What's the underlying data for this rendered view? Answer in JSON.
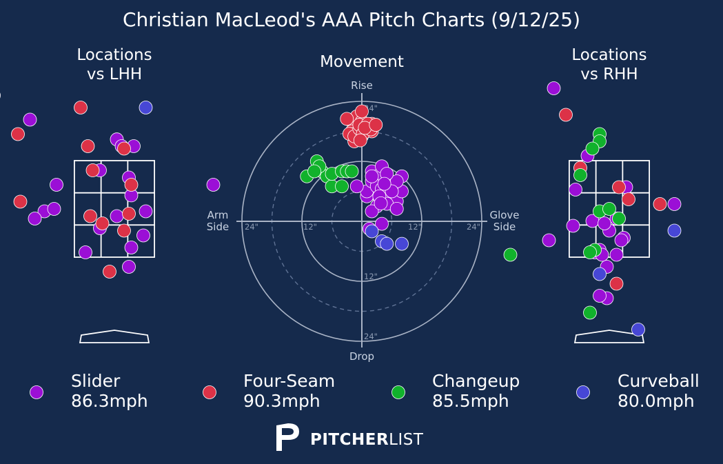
{
  "title": "Christian MacLeod's AAA Pitch Charts (9/12/25)",
  "colors": {
    "background": "#152a4c",
    "Slider": "#9b0fd6",
    "Four-Seam": "#dc3247",
    "Changeup": "#11b22c",
    "Curveball": "#4747d6"
  },
  "brand": {
    "logo": "pitcherlist-logo-icon",
    "bold": "PITCHER",
    "light": "LIST"
  },
  "legend": [
    {
      "pitch": "Slider",
      "velo": "86.3mph"
    },
    {
      "pitch": "Four-Seam",
      "velo": "90.3mph"
    },
    {
      "pitch": "Changeup",
      "velo": "85.5mph"
    },
    {
      "pitch": "Curveball",
      "velo": "80.0mph"
    }
  ],
  "chart_data": [
    {
      "type": "scatter",
      "title": "Locations\nvs LHH",
      "xlim": [
        -2.5,
        2.5
      ],
      "ylim": [
        0,
        5
      ],
      "strike_zone": {
        "x": [
          -0.83,
          0.83
        ],
        "z": [
          1.5,
          3.5
        ]
      },
      "series": [
        {
          "name": "Slider",
          "points": [
            [
              -2.5,
              4.85
            ],
            [
              -1.75,
              4.35
            ],
            [
              0.05,
              3.94
            ],
            [
              0.15,
              3.8
            ],
            [
              0.4,
              3.8
            ],
            [
              -0.3,
              3.3
            ],
            [
              0.3,
              3.15
            ],
            [
              -1.2,
              3.0
            ],
            [
              2.05,
              3.0
            ],
            [
              0.35,
              2.78
            ],
            [
              -1.45,
              2.45
            ],
            [
              -1.65,
              2.3
            ],
            [
              -1.25,
              2.5
            ],
            [
              0.05,
              2.35
            ],
            [
              0.65,
              2.45
            ],
            [
              0.6,
              1.95
            ],
            [
              -0.3,
              2.1
            ],
            [
              0.35,
              1.7
            ],
            [
              -0.6,
              1.6
            ],
            [
              0.3,
              1.3
            ]
          ]
        },
        {
          "name": "Four-Seam",
          "points": [
            [
              -0.7,
              4.6
            ],
            [
              -2.0,
              4.05
            ],
            [
              -0.55,
              3.8
            ],
            [
              0.2,
              3.75
            ],
            [
              -0.45,
              3.3
            ],
            [
              0.35,
              3.0
            ],
            [
              -1.95,
              2.65
            ],
            [
              0.3,
              2.4
            ],
            [
              -0.5,
              2.35
            ],
            [
              -0.25,
              2.2
            ],
            [
              0.2,
              2.05
            ],
            [
              -0.1,
              1.2
            ]
          ]
        },
        {
          "name": "Changeup",
          "points": []
        },
        {
          "name": "Curveball",
          "points": [
            [
              0.65,
              4.6
            ]
          ]
        }
      ]
    },
    {
      "type": "scatter",
      "title": "Movement",
      "xlabel_left": "Arm\nSide",
      "xlabel_right": "Glove\nSide",
      "ylabel_top": "Rise",
      "ylabel_bottom": "Drop",
      "rings": [
        6,
        12,
        18,
        24
      ],
      "ring_labels": [
        "12\"",
        "24\""
      ],
      "xlim": [
        -24,
        24
      ],
      "ylim": [
        -24,
        24
      ],
      "series": [
        {
          "name": "Slider",
          "points": [
            [
              1,
              5
            ],
            [
              2,
              10
            ],
            [
              3,
              9
            ],
            [
              4,
              11
            ],
            [
              4,
              7
            ],
            [
              5,
              8
            ],
            [
              6,
              5
            ],
            [
              7,
              4
            ],
            [
              8,
              9
            ],
            [
              8,
              6
            ],
            [
              3.5,
              4
            ],
            [
              5,
              6
            ],
            [
              1,
              6
            ],
            [
              2,
              8
            ],
            [
              3,
              7
            ],
            [
              4,
              6.5
            ],
            [
              6,
              7
            ],
            [
              7,
              8
            ],
            [
              5,
              3.5
            ],
            [
              3,
              3
            ],
            [
              -1,
              7
            ],
            [
              7,
              2.5
            ],
            [
              6,
              6
            ],
            [
              5,
              9.5
            ],
            [
              2,
              9
            ],
            [
              3.5,
              5
            ],
            [
              4.5,
              7.5
            ],
            [
              2,
              2
            ],
            [
              3.8,
              3.6
            ],
            [
              4,
              -0.5
            ],
            [
              1.5,
              -1.5
            ]
          ]
        },
        {
          "name": "Four-Seam",
          "points": [
            [
              -2,
              20
            ],
            [
              -1,
              21
            ],
            [
              0,
              20
            ],
            [
              1,
              19
            ],
            [
              2,
              18
            ],
            [
              -2,
              18
            ],
            [
              0,
              17
            ],
            [
              0,
              22
            ],
            [
              -1.5,
              16
            ],
            [
              -2.5,
              17.5
            ],
            [
              2,
              19
            ],
            [
              -1.5,
              17
            ],
            [
              -0.5,
              18.5
            ],
            [
              -0.5,
              19.3
            ],
            [
              -3,
              20.5
            ],
            [
              2,
              19.5
            ],
            [
              0.2,
              17.5
            ],
            [
              -0.3,
              16.2
            ],
            [
              1.8,
              18.4
            ],
            [
              1.2,
              19.5
            ],
            [
              0.6,
              18.7
            ],
            [
              2.8,
              19.3
            ]
          ]
        },
        {
          "name": "Changeup",
          "points": [
            [
              -11,
              9
            ],
            [
              -9,
              12
            ],
            [
              -8,
              10
            ],
            [
              -7,
              9
            ],
            [
              -6,
              7
            ],
            [
              -6,
              9.5
            ],
            [
              -4,
              7
            ],
            [
              -4,
              10
            ],
            [
              -3,
              10
            ],
            [
              -2,
              10
            ],
            [
              -8.5,
              11
            ],
            [
              -9.5,
              10
            ]
          ]
        },
        {
          "name": "Curveball",
          "points": [
            [
              2,
              -2
            ],
            [
              4,
              -4
            ],
            [
              5,
              -4.5
            ],
            [
              8,
              -4.5
            ]
          ]
        }
      ]
    },
    {
      "type": "scatter",
      "title": "Locations\nvs RHH",
      "xlim": [
        -2.5,
        2.5
      ],
      "ylim": [
        0,
        5
      ],
      "strike_zone": {
        "x": [
          -0.83,
          0.83
        ],
        "z": [
          1.5,
          3.5
        ]
      },
      "series": [
        {
          "name": "Slider",
          "points": [
            [
              -1.15,
              5.0
            ],
            [
              -0.45,
              3.6
            ],
            [
              0.35,
              2.95
            ],
            [
              -0.7,
              2.9
            ],
            [
              1.35,
              2.6
            ],
            [
              -0.35,
              2.25
            ],
            [
              -0.75,
              2.15
            ],
            [
              0.0,
              2.05
            ],
            [
              0.15,
              2.3
            ],
            [
              0.3,
              1.9
            ],
            [
              -0.1,
              2.2
            ],
            [
              0.25,
              1.85
            ],
            [
              -1.25,
              1.85
            ],
            [
              -0.2,
              1.65
            ],
            [
              0.15,
              1.55
            ],
            [
              -0.05,
              1.3
            ],
            [
              -0.3,
              1.6
            ],
            [
              -0.05,
              0.65
            ],
            [
              -0.2,
              0.7
            ],
            [
              -0.15,
              1.55
            ]
          ]
        },
        {
          "name": "Four-Seam",
          "points": [
            [
              -0.9,
              4.45
            ],
            [
              -0.6,
              3.35
            ],
            [
              0.2,
              2.95
            ],
            [
              0.4,
              2.7
            ],
            [
              1.05,
              2.6
            ],
            [
              0.15,
              0.95
            ]
          ]
        },
        {
          "name": "Changeup",
          "points": [
            [
              -0.2,
              4.05
            ],
            [
              -0.2,
              3.9
            ],
            [
              -0.35,
              3.75
            ],
            [
              -0.6,
              3.2
            ],
            [
              -0.2,
              2.45
            ],
            [
              0.0,
              2.5
            ],
            [
              0.2,
              2.3
            ],
            [
              -0.3,
              1.65
            ],
            [
              -0.4,
              1.6
            ],
            [
              -2.05,
              1.55
            ],
            [
              -0.4,
              0.35
            ]
          ]
        },
        {
          "name": "Curveball",
          "points": [
            [
              -0.2,
              1.15
            ],
            [
              1.35,
              2.05
            ],
            [
              0.6,
              0.0
            ]
          ]
        }
      ]
    }
  ]
}
